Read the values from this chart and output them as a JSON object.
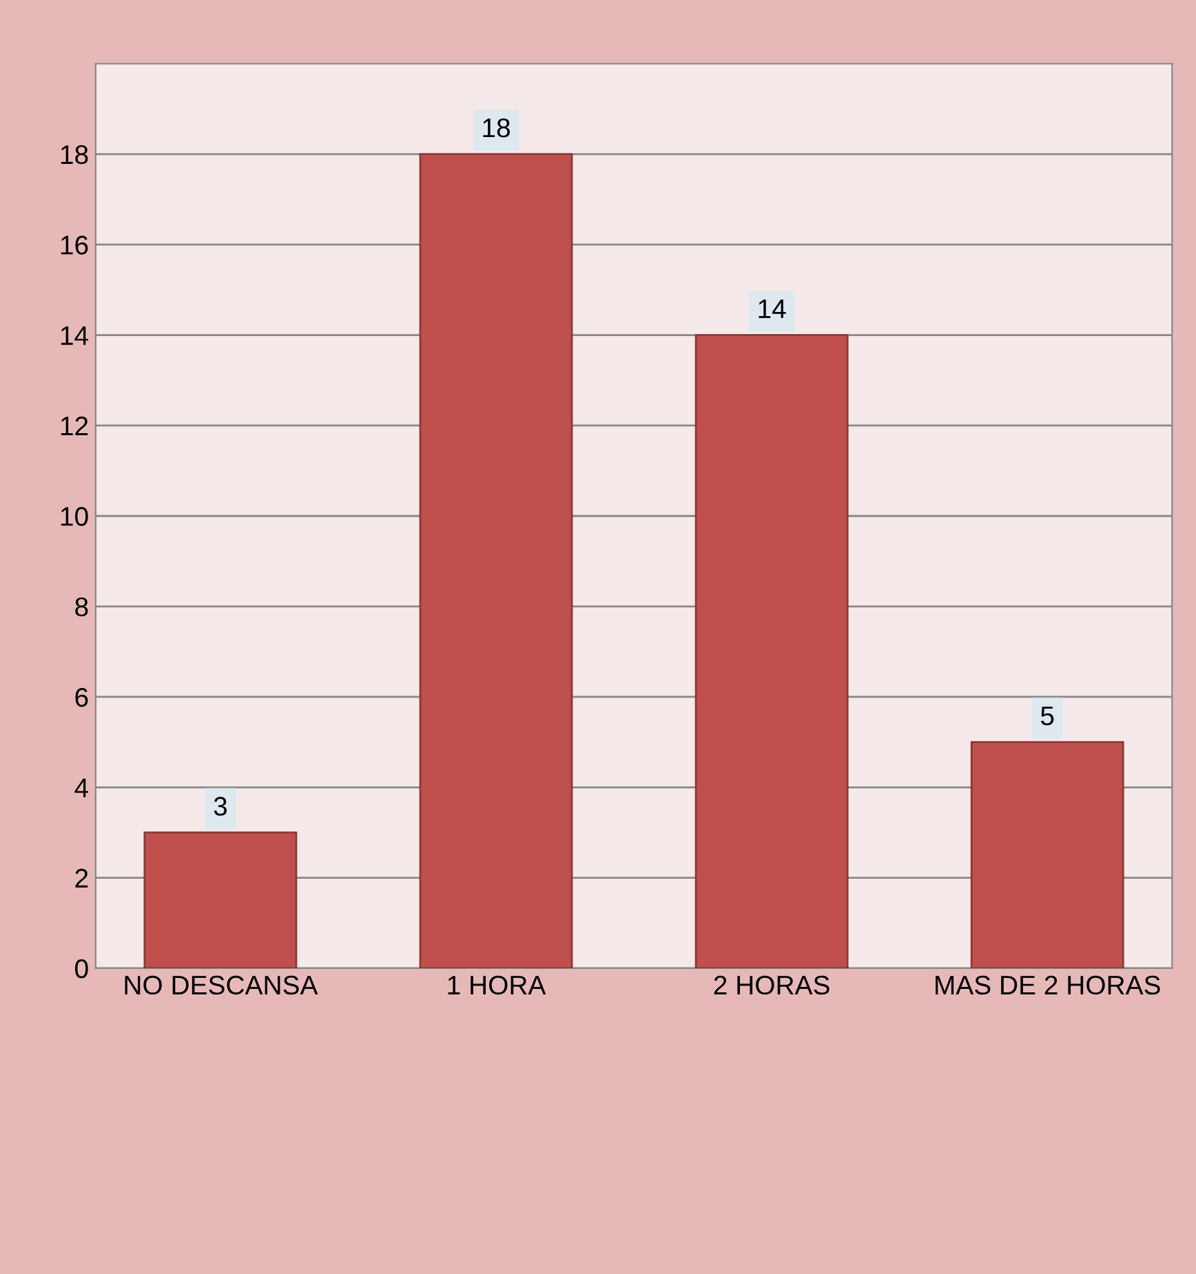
{
  "chart_data": {
    "type": "bar",
    "categories": [
      "NO DESCANSA",
      "1 HORA",
      "2 HORAS",
      "MAS DE 2 HORAS"
    ],
    "values": [
      3,
      18,
      14,
      5
    ],
    "color": "#c0504d",
    "ylim": [
      0,
      20
    ],
    "yticks": [
      0,
      2,
      4,
      6,
      8,
      10,
      12,
      14,
      16,
      18
    ],
    "grid": "y",
    "data_labels": true,
    "legend": false
  }
}
